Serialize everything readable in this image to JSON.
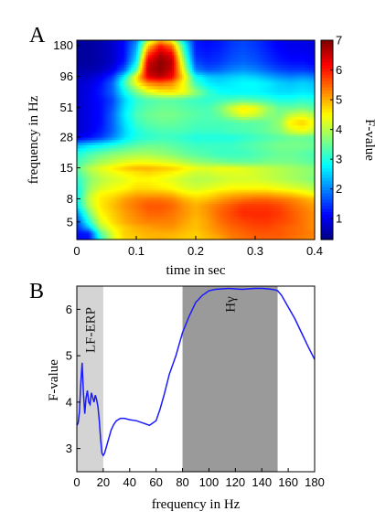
{
  "chart_data": [
    {
      "panel_label": "A",
      "type": "heatmap",
      "xlabel": "time in sec",
      "ylabel": "frequency in Hz",
      "colorbar_label": "F-value",
      "x_ticks": [
        0,
        0.1,
        0.2,
        0.3,
        0.4
      ],
      "x_tick_labels": [
        "0",
        "0.1",
        "0.2",
        "0.3",
        "0.4"
      ],
      "xlim": [
        0,
        0.4
      ],
      "y_scale": "log",
      "y_ticks": [
        180,
        96,
        51,
        28,
        15,
        8,
        5
      ],
      "y_tick_labels": [
        "180",
        "96",
        "51",
        "28",
        "15",
        "8",
        "5"
      ],
      "ylim": [
        3.5,
        200
      ],
      "colorbar_ticks": [
        1,
        2,
        3,
        4,
        5,
        6,
        7
      ],
      "colorbar_tick_labels": [
        "1",
        "2",
        "3",
        "4",
        "5",
        "6",
        "7"
      ],
      "clim": [
        0.3,
        7
      ],
      "colormap": "jet",
      "time_bins": [
        0,
        0.02,
        0.04,
        0.06,
        0.08,
        0.1,
        0.12,
        0.14,
        0.16,
        0.18,
        0.2,
        0.22,
        0.24,
        0.26,
        0.28,
        0.3,
        0.32,
        0.34,
        0.36,
        0.38,
        0.4
      ],
      "freq_bins": [
        3.5,
        4,
        4.5,
        5,
        6,
        7,
        8,
        9,
        10,
        12,
        14,
        15,
        17,
        20,
        24,
        28,
        32,
        38,
        45,
        51,
        60,
        70,
        85,
        96,
        110,
        130,
        150,
        180,
        200
      ],
      "values": [
        [
          1.2,
          1.2,
          3.0,
          4.2,
          4.7,
          4.8,
          4.9,
          5.0,
          4.9,
          4.8,
          4.8,
          4.9,
          5.0,
          5.3,
          5.4,
          5.5,
          5.5,
          5.5,
          5.4,
          5.3,
          5.2
        ],
        [
          1.2,
          1.3,
          3.3,
          4.3,
          4.8,
          4.9,
          5.0,
          5.0,
          5.0,
          4.9,
          4.8,
          5.0,
          5.2,
          5.4,
          5.5,
          5.6,
          5.6,
          5.6,
          5.5,
          5.4,
          5.3
        ],
        [
          1.4,
          2.4,
          3.9,
          4.5,
          4.8,
          5.0,
          5.1,
          5.2,
          5.2,
          5.0,
          4.9,
          5.1,
          5.3,
          5.5,
          5.6,
          5.7,
          5.7,
          5.6,
          5.5,
          5.4,
          5.2
        ],
        [
          1.5,
          3.0,
          4.2,
          4.7,
          5.0,
          5.2,
          5.3,
          5.3,
          5.3,
          5.1,
          4.9,
          5.1,
          5.4,
          5.6,
          5.7,
          5.8,
          5.8,
          5.7,
          5.6,
          5.4,
          5.2
        ],
        [
          2.0,
          3.6,
          4.5,
          4.8,
          5.1,
          5.3,
          5.5,
          5.5,
          5.4,
          5.2,
          5.0,
          5.2,
          5.5,
          5.7,
          5.9,
          5.9,
          5.9,
          5.8,
          5.6,
          5.4,
          5.2
        ],
        [
          2.6,
          4.0,
          4.6,
          4.9,
          5.2,
          5.4,
          5.6,
          5.6,
          5.5,
          5.2,
          5.0,
          5.2,
          5.4,
          5.6,
          5.8,
          5.8,
          5.8,
          5.7,
          5.5,
          5.3,
          5.1
        ],
        [
          2.8,
          4.1,
          4.6,
          4.8,
          5.1,
          5.3,
          5.4,
          5.4,
          5.3,
          5.0,
          4.8,
          4.9,
          5.1,
          5.3,
          5.4,
          5.5,
          5.5,
          5.4,
          5.3,
          5.1,
          4.9
        ],
        [
          2.7,
          4.0,
          4.5,
          4.6,
          4.8,
          5.0,
          5.0,
          5.0,
          4.9,
          4.6,
          4.5,
          4.6,
          4.8,
          4.9,
          5.0,
          5.0,
          5.0,
          4.9,
          4.8,
          4.6,
          4.4
        ],
        [
          2.8,
          3.8,
          4.2,
          4.4,
          4.5,
          4.7,
          4.7,
          4.6,
          4.5,
          4.3,
          4.2,
          4.3,
          4.4,
          4.5,
          4.5,
          4.5,
          4.5,
          4.4,
          4.3,
          4.2,
          4.0
        ],
        [
          3.0,
          3.7,
          4.0,
          4.2,
          4.3,
          4.5,
          4.5,
          4.4,
          4.3,
          4.1,
          4.0,
          4.0,
          4.1,
          4.2,
          4.2,
          4.2,
          4.1,
          4.0,
          3.9,
          3.8,
          3.6
        ],
        [
          3.3,
          3.9,
          4.2,
          4.4,
          4.6,
          4.7,
          4.8,
          4.7,
          4.6,
          4.4,
          4.2,
          4.2,
          4.3,
          4.3,
          4.3,
          4.2,
          4.1,
          4.0,
          3.9,
          3.8,
          3.7
        ],
        [
          3.4,
          4.0,
          4.3,
          4.6,
          4.8,
          5.0,
          5.0,
          4.9,
          4.8,
          4.6,
          4.4,
          4.3,
          4.4,
          4.4,
          4.3,
          4.2,
          4.1,
          4.0,
          3.9,
          3.8,
          3.7
        ],
        [
          3.2,
          3.6,
          3.9,
          4.1,
          4.3,
          4.4,
          4.4,
          4.3,
          4.2,
          4.0,
          3.8,
          3.7,
          3.6,
          3.5,
          3.5,
          3.5,
          3.6,
          3.6,
          3.6,
          3.5,
          3.4
        ],
        [
          3.0,
          3.3,
          3.5,
          3.7,
          3.8,
          3.9,
          3.9,
          3.8,
          3.7,
          3.5,
          3.4,
          3.3,
          3.2,
          3.2,
          3.2,
          3.3,
          3.4,
          3.5,
          3.5,
          3.4,
          3.3
        ],
        [
          2.3,
          2.6,
          2.8,
          3.0,
          3.2,
          3.4,
          3.5,
          3.5,
          3.4,
          3.3,
          3.2,
          3.2,
          3.2,
          3.2,
          3.3,
          3.4,
          3.5,
          3.6,
          3.6,
          3.6,
          3.5
        ],
        [
          1.0,
          1.2,
          1.5,
          2.0,
          2.6,
          3.0,
          3.1,
          3.2,
          3.2,
          3.1,
          3.0,
          3.0,
          3.0,
          3.0,
          3.1,
          3.2,
          3.3,
          3.4,
          3.5,
          3.5,
          3.4
        ],
        [
          0.8,
          1.0,
          1.3,
          1.8,
          2.5,
          3.0,
          3.2,
          3.3,
          3.3,
          3.3,
          3.2,
          3.2,
          3.2,
          3.3,
          3.3,
          3.4,
          3.5,
          3.7,
          4.2,
          4.4,
          4.1
        ],
        [
          0.8,
          1.0,
          1.2,
          1.8,
          2.6,
          3.2,
          3.4,
          3.5,
          3.5,
          3.4,
          3.3,
          3.3,
          3.3,
          3.3,
          3.4,
          3.4,
          3.5,
          3.8,
          4.6,
          4.8,
          4.4
        ],
        [
          0.8,
          1.0,
          1.2,
          1.8,
          2.7,
          3.3,
          3.5,
          3.6,
          3.6,
          3.5,
          3.4,
          3.3,
          3.5,
          4.0,
          4.4,
          4.2,
          3.8,
          3.6,
          4.0,
          4.2,
          3.9
        ],
        [
          0.8,
          1.0,
          1.2,
          1.7,
          2.6,
          3.2,
          3.4,
          3.5,
          3.5,
          3.4,
          3.3,
          3.3,
          3.6,
          4.2,
          4.6,
          4.4,
          3.9,
          3.5,
          3.5,
          3.6,
          3.4
        ],
        [
          0.8,
          1.0,
          1.2,
          1.6,
          2.5,
          3.1,
          3.3,
          3.4,
          3.4,
          3.3,
          3.2,
          3.1,
          3.2,
          3.3,
          3.4,
          3.3,
          3.2,
          3.0,
          3.0,
          3.1,
          3.0
        ],
        [
          0.8,
          1.0,
          1.3,
          1.8,
          2.8,
          3.6,
          4.2,
          4.5,
          4.6,
          4.4,
          3.8,
          3.2,
          2.9,
          2.8,
          2.8,
          2.8,
          2.7,
          2.6,
          2.6,
          2.7,
          2.6
        ],
        [
          0.8,
          0.9,
          1.2,
          1.8,
          3.2,
          4.5,
          5.3,
          5.5,
          5.3,
          4.4,
          3.2,
          2.7,
          2.6,
          2.7,
          2.8,
          2.8,
          2.7,
          2.5,
          2.4,
          2.5,
          2.4
        ],
        [
          0.7,
          0.8,
          1.0,
          1.5,
          2.8,
          4.6,
          6.3,
          6.6,
          6.2,
          4.6,
          2.9,
          2.5,
          2.4,
          2.5,
          2.6,
          2.5,
          2.3,
          2.1,
          2.0,
          2.1,
          2.0
        ],
        [
          0.6,
          0.6,
          0.7,
          1.0,
          1.8,
          3.5,
          6.6,
          6.9,
          6.5,
          4.2,
          2.0,
          1.7,
          1.8,
          2.0,
          2.1,
          2.0,
          1.8,
          1.6,
          1.5,
          1.5,
          1.4
        ],
        [
          0.5,
          0.5,
          0.6,
          0.8,
          1.3,
          2.8,
          6.4,
          6.9,
          6.6,
          3.8,
          1.6,
          1.4,
          1.5,
          1.7,
          1.8,
          1.7,
          1.5,
          1.3,
          1.2,
          1.2,
          1.1
        ],
        [
          0.5,
          0.5,
          0.6,
          0.8,
          1.2,
          2.5,
          5.8,
          6.7,
          6.3,
          3.4,
          1.4,
          1.3,
          1.4,
          1.6,
          1.7,
          1.6,
          1.4,
          1.2,
          1.1,
          1.1,
          1.0
        ],
        [
          0.5,
          0.5,
          0.6,
          0.8,
          1.2,
          2.2,
          4.8,
          6.0,
          5.4,
          3.0,
          1.3,
          1.2,
          1.3,
          1.5,
          1.6,
          1.5,
          1.3,
          1.1,
          1.0,
          1.0,
          0.9
        ],
        [
          0.5,
          0.5,
          0.6,
          0.8,
          1.2,
          2.0,
          4.0,
          5.0,
          4.5,
          2.6,
          1.3,
          1.2,
          1.3,
          1.5,
          1.6,
          1.5,
          1.3,
          1.1,
          1.0,
          1.0,
          0.9
        ]
      ]
    },
    {
      "panel_label": "B",
      "type": "line",
      "xlabel": "frequency in Hz",
      "ylabel": "F-value",
      "xlim": [
        0,
        180
      ],
      "ylim": [
        2.5,
        6.5
      ],
      "x_ticks": [
        0,
        20,
        40,
        60,
        80,
        100,
        120,
        140,
        160,
        180
      ],
      "x_tick_labels": [
        "0",
        "20",
        "40",
        "60",
        "80",
        "100",
        "120",
        "140",
        "160",
        "180"
      ],
      "y_ticks": [
        3,
        4,
        5,
        6
      ],
      "y_tick_labels": [
        "3",
        "4",
        "5",
        "6"
      ],
      "line_color": "#1a1aff",
      "bands": [
        {
          "label": "LF-ERP",
          "x0": 0,
          "x1": 20,
          "color": "#d4d4d4"
        },
        {
          "label": "Hγ",
          "x0": 80,
          "x1": 152,
          "color": "#9a9a9a"
        }
      ],
      "series": [
        {
          "x": [
            0,
            1,
            2,
            3,
            4,
            5,
            6,
            7,
            8,
            9,
            10,
            11,
            12,
            13,
            14,
            15,
            16,
            17,
            18,
            19,
            20,
            21,
            22,
            24,
            26,
            28,
            30,
            33,
            36,
            40,
            45,
            50,
            55,
            60,
            63,
            66,
            70,
            75,
            80,
            85,
            90,
            95,
            100,
            105,
            110,
            115,
            120,
            125,
            130,
            135,
            140,
            145,
            150,
            152,
            155,
            160,
            165,
            170,
            175,
            180
          ],
          "y": [
            3.5,
            3.55,
            3.8,
            4.4,
            4.85,
            4.2,
            3.75,
            4.1,
            4.25,
            4.0,
            3.95,
            4.2,
            4.1,
            4.0,
            4.15,
            4.05,
            3.9,
            3.6,
            3.2,
            2.9,
            2.85,
            2.9,
            3.0,
            3.2,
            3.4,
            3.52,
            3.6,
            3.65,
            3.65,
            3.62,
            3.6,
            3.55,
            3.5,
            3.6,
            3.85,
            4.15,
            4.6,
            5.0,
            5.5,
            5.85,
            6.15,
            6.3,
            6.4,
            6.43,
            6.44,
            6.45,
            6.44,
            6.43,
            6.44,
            6.45,
            6.45,
            6.44,
            6.42,
            6.4,
            6.3,
            6.05,
            5.8,
            5.5,
            5.2,
            4.92
          ]
        }
      ]
    }
  ]
}
